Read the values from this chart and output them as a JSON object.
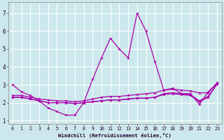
{
  "xlabel": "Windchill (Refroidissement éolien,°C)",
  "ylabel": "",
  "background_color": "#cce8ec",
  "line_color": "#aa00aa",
  "grid_color": "#ffffff",
  "xlim": [
    -0.5,
    23.5
  ],
  "ylim": [
    0.8,
    7.6
  ],
  "xticks": [
    0,
    1,
    2,
    3,
    4,
    5,
    6,
    7,
    8,
    9,
    10,
    11,
    12,
    13,
    14,
    15,
    16,
    17,
    18,
    19,
    20,
    21,
    22,
    23
  ],
  "yticks": [
    1,
    2,
    3,
    4,
    5,
    6,
    7
  ],
  "hours": [
    0,
    1,
    2,
    3,
    4,
    5,
    6,
    7,
    8,
    9,
    10,
    11,
    12,
    13,
    14,
    15,
    16,
    17,
    18,
    19,
    20,
    21,
    22,
    23
  ],
  "line1": [
    3.0,
    2.6,
    2.4,
    2.1,
    1.7,
    1.5,
    1.3,
    1.3,
    2.0,
    3.3,
    4.5,
    5.6,
    5.0,
    4.5,
    7.0,
    6.0,
    4.3,
    2.7,
    2.8,
    2.5,
    2.5,
    1.9,
    2.6,
    3.1
  ],
  "line2": [
    2.4,
    2.4,
    2.3,
    2.2,
    2.15,
    2.1,
    2.1,
    2.05,
    2.1,
    2.2,
    2.3,
    2.35,
    2.35,
    2.4,
    2.45,
    2.5,
    2.55,
    2.7,
    2.75,
    2.7,
    2.65,
    2.55,
    2.55,
    3.1
  ],
  "line3": [
    2.3,
    2.3,
    2.2,
    2.1,
    2.0,
    2.0,
    2.0,
    1.95,
    2.0,
    2.05,
    2.1,
    2.15,
    2.15,
    2.2,
    2.25,
    2.25,
    2.3,
    2.5,
    2.55,
    2.5,
    2.45,
    2.1,
    2.35,
    3.05
  ],
  "line4": [
    2.3,
    2.3,
    2.2,
    2.1,
    2.0,
    2.0,
    2.0,
    1.95,
    2.0,
    2.05,
    2.1,
    2.15,
    2.15,
    2.2,
    2.25,
    2.25,
    2.3,
    2.45,
    2.5,
    2.45,
    2.4,
    2.05,
    2.3,
    3.05
  ]
}
